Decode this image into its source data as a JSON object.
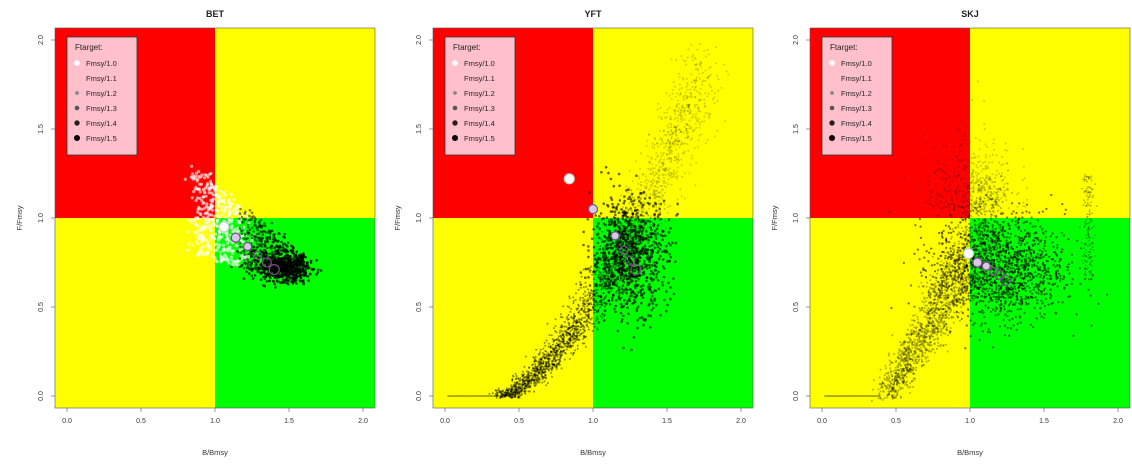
{
  "colors": {
    "red": "#ff0000",
    "yellow": "#ffff00",
    "green": "#00ff00",
    "cloud": "#000000",
    "point_fill": "#d9c8e6",
    "point_stroke": "#7a4f8c",
    "legend_bg": "#ffc0cb"
  },
  "chart_data": [
    {
      "type": "scatter",
      "title": "BET",
      "xlabel": "B/Bmsy",
      "ylabel": "F/Fmsy",
      "xlim": [
        0,
        2.0
      ],
      "ylim": [
        0,
        2.0
      ],
      "xticks": [
        "0.0",
        "0.5",
        "1.0",
        "1.5",
        "2.0"
      ],
      "yticks": [
        "0.0",
        "0.5",
        "1.0",
        "1.5",
        "2.0"
      ],
      "legend": {
        "title": "Ftarget:",
        "position": "top-left",
        "entries": [
          "Fmsy/1.0",
          "Fmsy/1.1",
          "Fmsy/1.2",
          "Fmsy/1.3",
          "Fmsy/1.4",
          "Fmsy/1.5"
        ]
      },
      "series": [
        {
          "name": "Fmsy/1.0",
          "x": [
            1.06
          ],
          "y": [
            0.95
          ]
        },
        {
          "name": "Fmsy/1.1",
          "x": [
            1.14
          ],
          "y": [
            0.89
          ]
        },
        {
          "name": "Fmsy/1.2",
          "x": [
            1.22
          ],
          "y": [
            0.84
          ]
        },
        {
          "name": "Fmsy/1.3",
          "x": [
            1.29
          ],
          "y": [
            0.79
          ]
        },
        {
          "name": "Fmsy/1.4",
          "x": [
            1.35
          ],
          "y": [
            0.75
          ]
        },
        {
          "name": "Fmsy/1.5",
          "x": [
            1.4
          ],
          "y": [
            0.71
          ]
        }
      ],
      "cloud": "bet"
    },
    {
      "type": "scatter",
      "title": "YFT",
      "xlabel": "B/Bmsy",
      "ylabel": "F/Fmsy",
      "xlim": [
        0,
        2.0
      ],
      "ylim": [
        0,
        2.0
      ],
      "xticks": [
        "0.0",
        "0.5",
        "1.0",
        "1.5",
        "2.0"
      ],
      "yticks": [
        "0.0",
        "0.5",
        "1.0",
        "1.5",
        "2.0"
      ],
      "legend": {
        "title": "Ftarget:",
        "position": "top-left",
        "entries": [
          "Fmsy/1.0",
          "Fmsy/1.1",
          "Fmsy/1.2",
          "Fmsy/1.3",
          "Fmsy/1.4",
          "Fmsy/1.5"
        ]
      },
      "series": [
        {
          "name": "Fmsy/1.0",
          "x": [
            0.84
          ],
          "y": [
            1.22
          ]
        },
        {
          "name": "Fmsy/1.1",
          "x": [
            1.0
          ],
          "y": [
            1.05
          ]
        },
        {
          "name": "Fmsy/1.2",
          "x": [
            1.15
          ],
          "y": [
            0.9
          ]
        },
        {
          "name": "Fmsy/1.3",
          "x": [
            1.21
          ],
          "y": [
            0.82
          ]
        },
        {
          "name": "Fmsy/1.4",
          "x": [
            1.25
          ],
          "y": [
            0.76
          ]
        },
        {
          "name": "Fmsy/1.5",
          "x": [
            1.29
          ],
          "y": [
            0.71
          ]
        }
      ],
      "cloud": "yft"
    },
    {
      "type": "scatter",
      "title": "SKJ",
      "xlabel": "B/Bmsy",
      "ylabel": "F/Fmsy",
      "xlim": [
        0,
        2.0
      ],
      "ylim": [
        0,
        2.0
      ],
      "xticks": [
        "0.0",
        "0.5",
        "1.0",
        "1.5",
        "2.0"
      ],
      "yticks": [
        "0.0",
        "0.5",
        "1.0",
        "1.5",
        "2.0"
      ],
      "legend": {
        "title": "Ftarget:",
        "position": "top-left",
        "entries": [
          "Fmsy/1.0",
          "Fmsy/1.1",
          "Fmsy/1.2",
          "Fmsy/1.3",
          "Fmsy/1.4",
          "Fmsy/1.5"
        ]
      },
      "series": [
        {
          "name": "Fmsy/1.0",
          "x": [
            0.99
          ],
          "y": [
            0.8
          ]
        },
        {
          "name": "Fmsy/1.1",
          "x": [
            1.05
          ],
          "y": [
            0.75
          ]
        },
        {
          "name": "Fmsy/1.2",
          "x": [
            1.11
          ],
          "y": [
            0.73
          ]
        },
        {
          "name": "Fmsy/1.3",
          "x": [
            1.16
          ],
          "y": [
            0.7
          ]
        },
        {
          "name": "Fmsy/1.4",
          "x": [
            1.2
          ],
          "y": [
            0.68
          ]
        },
        {
          "name": "Fmsy/1.5",
          "x": [
            1.24
          ],
          "y": [
            0.65
          ]
        }
      ],
      "cloud": "skj"
    }
  ]
}
